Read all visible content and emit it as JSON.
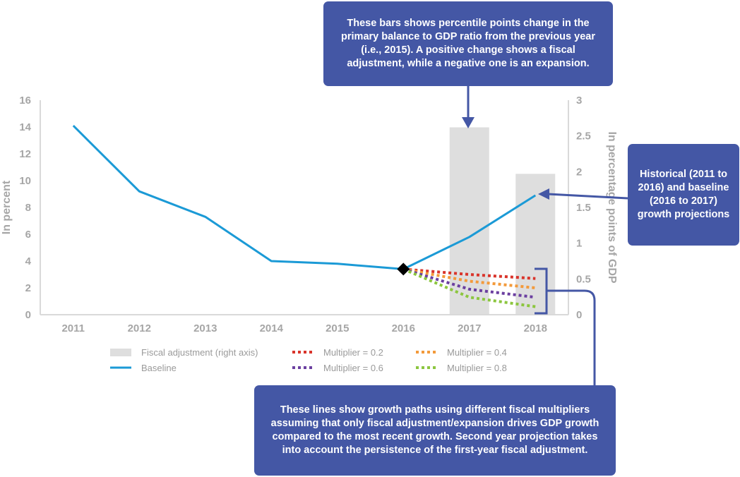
{
  "chart_data": {
    "type": "line",
    "categories": [
      "2011",
      "2012",
      "2013",
      "2014",
      "2015",
      "2016",
      "2017",
      "2018"
    ],
    "ylabel": "In percent",
    "y2label": "In percentage points of GDP",
    "ylim": [
      0,
      16
    ],
    "y2lim": [
      0,
      3
    ],
    "yticks": [
      "0",
      "2",
      "4",
      "6",
      "8",
      "10",
      "12",
      "14",
      "16"
    ],
    "y2ticks": [
      "0",
      "0.5",
      "1",
      "1.5",
      "2",
      "2.5",
      "3"
    ],
    "bars": {
      "name": "Fiscal adjustment (right axis)",
      "axis": "right",
      "color": "#dedede",
      "categories": [
        "2017",
        "2018"
      ],
      "values": [
        2.62,
        1.97
      ]
    },
    "series": [
      {
        "name": "Baseline",
        "style": "solid",
        "color": "#1b9ad6",
        "values": [
          14.1,
          9.2,
          7.3,
          4.0,
          3.8,
          3.4,
          5.8,
          8.9
        ]
      },
      {
        "name": "Multiplier = 0.2",
        "style": "dotted",
        "color": "#d9342b",
        "values": [
          null,
          null,
          null,
          null,
          null,
          3.4,
          3.0,
          2.7
        ]
      },
      {
        "name": "Multiplier = 0.4",
        "style": "dotted",
        "color": "#f39a3b",
        "values": [
          null,
          null,
          null,
          null,
          null,
          3.4,
          2.5,
          2.0
        ]
      },
      {
        "name": "Multiplier = 0.6",
        "style": "dotted",
        "color": "#6b3fa0",
        "values": [
          null,
          null,
          null,
          null,
          null,
          3.4,
          1.9,
          1.3
        ]
      },
      {
        "name": "Multiplier = 0.8",
        "style": "dotted",
        "color": "#8cc63f",
        "values": [
          null,
          null,
          null,
          null,
          null,
          3.4,
          1.3,
          0.6
        ]
      }
    ],
    "marker": {
      "category": "2016",
      "value": 3.4,
      "shape": "diamond",
      "color": "#000000"
    },
    "grid": false,
    "legend_position": "bottom"
  },
  "annotations": {
    "top": "These bars shows percentile points change in the primary balance to GDP ratio from the previous year (i.e., 2015). A positive change shows a fiscal adjustment, while a negative one is an expansion.",
    "right": "Historical (2011 to 2016) and baseline (2016 to 2017) growth projections",
    "bottom": "These lines show growth paths using different fiscal multipliers assuming that only fiscal adjustment/expansion drives GDP growth compared to the most recent growth. Second year projection takes into account the persistence of the first-year fiscal adjustment."
  },
  "colors": {
    "callout": "#4457a5",
    "axis_text": "#a6a6a6",
    "axis_line": "#d9d9d9"
  }
}
